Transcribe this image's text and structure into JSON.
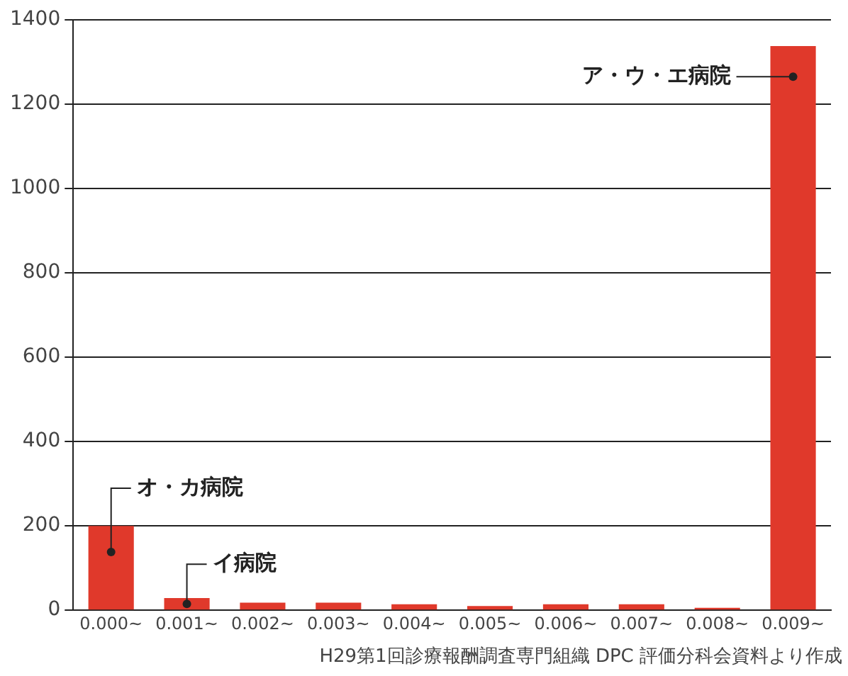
{
  "chart_data": {
    "type": "bar",
    "categories": [
      "0.000~",
      "0.001~",
      "0.002~",
      "0.003~",
      "0.004~",
      "0.005~",
      "0.006~",
      "0.007~",
      "0.008~",
      "0.009~"
    ],
    "values": [
      200,
      29,
      18,
      18,
      14,
      10,
      14,
      14,
      6,
      1338
    ],
    "color": "#e0392b",
    "ylim": [
      0,
      1400
    ],
    "yticks": [
      0,
      200,
      400,
      600,
      800,
      1000,
      1200,
      1400
    ],
    "grid": "y",
    "annotations": [
      {
        "text": "オ・カ病院",
        "x": "0.000~",
        "y": 138
      },
      {
        "text": "イ病院",
        "x": "0.001~",
        "y": 15
      },
      {
        "text": "ア・ウ・エ病院",
        "x": "0.009~",
        "y": 1265
      },
      "H29第1回診療報酬調査専門組織 DPC 評価分科会資料より作成"
    ]
  }
}
